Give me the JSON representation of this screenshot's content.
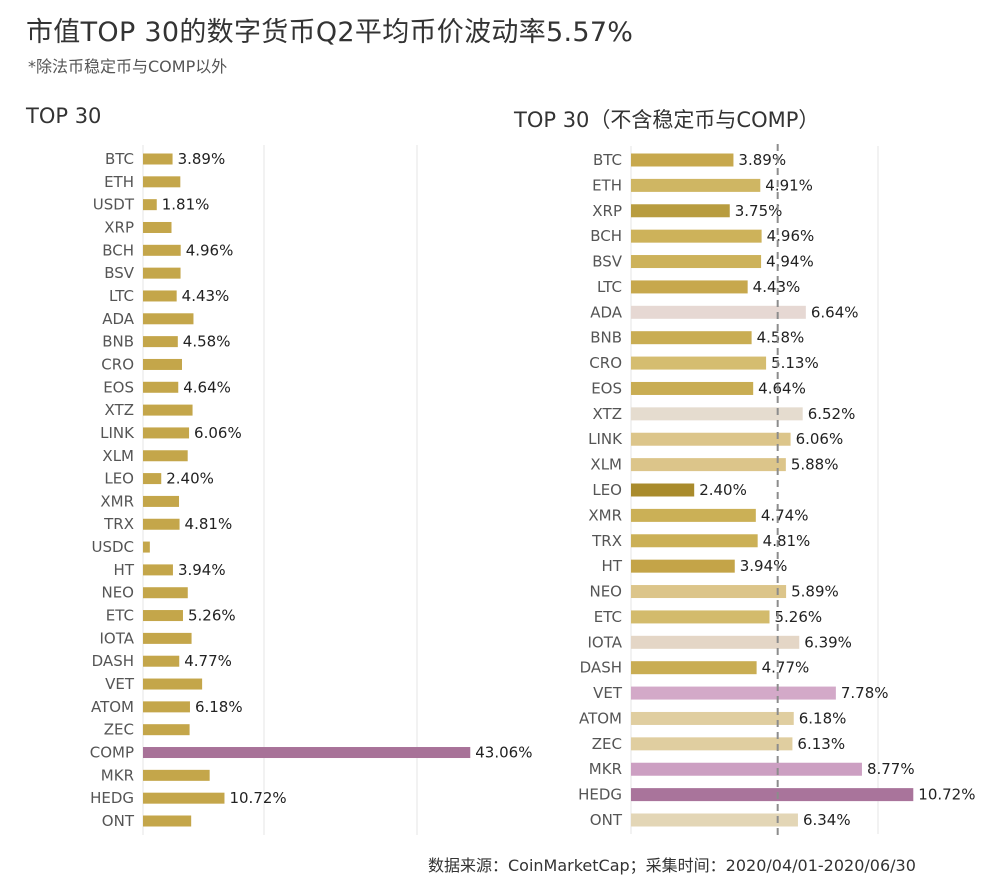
{
  "title": "市值TOP 30的数字货币Q2平均币价波动率5.57%",
  "subtitle": "*除法币稳定币与COMP以外",
  "footer": "数据来源：CoinMarketCap；采集时间：2020/04/01-2020/06/30",
  "chart_data": [
    {
      "type": "bar",
      "orientation": "horizontal",
      "title": "TOP 30",
      "categories": [
        "BTC",
        "ETH",
        "USDT",
        "XRP",
        "BCH",
        "BSV",
        "LTC",
        "ADA",
        "BNB",
        "CRO",
        "EOS",
        "XTZ",
        "LINK",
        "XLM",
        "LEO",
        "XMR",
        "TRX",
        "USDC",
        "HT",
        "NEO",
        "ETC",
        "IOTA",
        "DASH",
        "VET",
        "ATOM",
        "ZEC",
        "COMP",
        "MKR",
        "HEDG",
        "ONT"
      ],
      "values": [
        3.89,
        4.91,
        1.81,
        3.75,
        4.96,
        4.94,
        4.43,
        6.64,
        4.58,
        5.13,
        4.64,
        6.52,
        6.06,
        5.88,
        2.4,
        4.74,
        4.81,
        0.9,
        3.94,
        5.89,
        5.26,
        6.39,
        4.77,
        7.78,
        6.18,
        6.13,
        43.06,
        8.77,
        10.72,
        6.34
      ],
      "labels": [
        "3.89%",
        "",
        "1.81%",
        "",
        "4.96%",
        "",
        "4.43%",
        "",
        "4.58%",
        "",
        "4.64%",
        "",
        "6.06%",
        "",
        "2.40%",
        "",
        "4.81%",
        "",
        "3.94%",
        "",
        "5.26%",
        "",
        "4.77%",
        "",
        "6.18%",
        "",
        "43.06%",
        "",
        "10.72%",
        ""
      ],
      "colors": [
        "#c4a64a",
        "#c4a64a",
        "#c4a64a",
        "#c4a64a",
        "#c4a64a",
        "#c4a64a",
        "#c4a64a",
        "#c4a64a",
        "#c4a64a",
        "#c4a64a",
        "#c4a64a",
        "#c4a64a",
        "#c4a64a",
        "#c4a64a",
        "#c4a64a",
        "#c4a64a",
        "#c4a64a",
        "#c4a64a",
        "#c4a64a",
        "#c4a64a",
        "#c4a64a",
        "#c4a64a",
        "#c4a64a",
        "#c4a64a",
        "#c4a64a",
        "#c4a64a",
        "#a87298",
        "#c4a64a",
        "#c4a64a",
        "#c4a64a"
      ],
      "xlim": [
        0,
        50
      ],
      "grid": true
    },
    {
      "type": "bar",
      "orientation": "horizontal",
      "title": "TOP 30（不含稳定币与COMP）",
      "categories": [
        "BTC",
        "ETH",
        "XRP",
        "BCH",
        "BSV",
        "LTC",
        "ADA",
        "BNB",
        "CRO",
        "EOS",
        "XTZ",
        "LINK",
        "XLM",
        "LEO",
        "XMR",
        "TRX",
        "HT",
        "NEO",
        "ETC",
        "IOTA",
        "DASH",
        "VET",
        "ATOM",
        "ZEC",
        "MKR",
        "HEDG",
        "ONT"
      ],
      "values": [
        3.89,
        4.91,
        3.75,
        4.96,
        4.94,
        4.43,
        6.64,
        4.58,
        5.13,
        4.64,
        6.52,
        6.06,
        5.88,
        2.4,
        4.74,
        4.81,
        3.94,
        5.89,
        5.26,
        6.39,
        4.77,
        7.78,
        6.18,
        6.13,
        8.77,
        10.72,
        6.34
      ],
      "labels": [
        "3.89%",
        "4.91%",
        "3.75%",
        "4.96%",
        "4.94%",
        "4.43%",
        "6.64%",
        "4.58%",
        "5.13%",
        "4.64%",
        "6.52%",
        "6.06%",
        "5.88%",
        "2.40%",
        "4.74%",
        "4.81%",
        "3.94%",
        "5.89%",
        "5.26%",
        "6.39%",
        "4.77%",
        "7.78%",
        "6.18%",
        "6.13%",
        "8.77%",
        "10.72%",
        "6.34%"
      ],
      "colors": [
        "#c7a84d",
        "#cfb663",
        "#b89c3f",
        "#cdb25a",
        "#cdb25a",
        "#c7a84d",
        "#e6d8d3",
        "#c9ad53",
        "#d5bd70",
        "#c9ad53",
        "#e5dccf",
        "#dcc58a",
        "#dcc58a",
        "#a98b2c",
        "#cbb056",
        "#cbb056",
        "#c4a448",
        "#dcc58a",
        "#d3bb6c",
        "#e4d6c6",
        "#c9ad53",
        "#d3a9c8",
        "#e0cea0",
        "#e0cea0",
        "#cc9fc2",
        "#a9749b",
        "#e3d6b6"
      ],
      "xlim": [
        0,
        12
      ],
      "reference_line": 5.57,
      "grid": true
    }
  ]
}
